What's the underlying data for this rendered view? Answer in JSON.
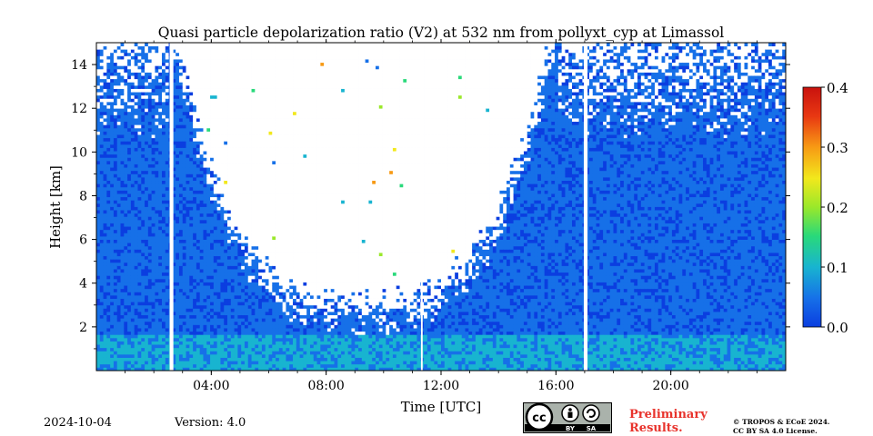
{
  "chart_data": {
    "type": "heatmap",
    "title": "Quasi particle depolarization ratio (V2) at 532 nm from pollyxt_cyp at Limassol",
    "xlabel": "Time [UTC]",
    "ylabel": "Height [km]",
    "x_range_hours": [
      0,
      24
    ],
    "ylim": [
      0,
      15
    ],
    "x_ticks": [
      {
        "value": 4,
        "label": "04:00"
      },
      {
        "value": 8,
        "label": "08:00"
      },
      {
        "value": 12,
        "label": "12:00"
      },
      {
        "value": 16,
        "label": "16:00"
      },
      {
        "value": 20,
        "label": "20:00"
      }
    ],
    "y_ticks": [
      {
        "value": 2,
        "label": "2"
      },
      {
        "value": 4,
        "label": "4"
      },
      {
        "value": 6,
        "label": "6"
      },
      {
        "value": 8,
        "label": "8"
      },
      {
        "value": 10,
        "label": "10"
      },
      {
        "value": 12,
        "label": "12"
      },
      {
        "value": 14,
        "label": "14"
      }
    ],
    "colorbar": {
      "range": [
        0.0,
        0.4
      ],
      "ticks": [
        {
          "value": 0.0,
          "label": "0.0"
        },
        {
          "value": 0.1,
          "label": "0.1"
        },
        {
          "value": 0.2,
          "label": "0.2"
        },
        {
          "value": 0.3,
          "label": "0.3"
        },
        {
          "value": 0.4,
          "label": "0.4"
        }
      ],
      "colormap": [
        "#0b3ee0",
        "#1670e8",
        "#18b4d0",
        "#29d97a",
        "#9ae82a",
        "#f2e81c",
        "#f79a14",
        "#e83712",
        "#c9120e"
      ]
    },
    "no_data_gaps_hours": [
      [
        2.55,
        2.68
      ],
      [
        11.3,
        11.36
      ],
      [
        16.97,
        17.1
      ]
    ],
    "daytime_white_region": {
      "start_hour": 2.7,
      "end_hour": 15.9,
      "lowest_base_km": 2.7,
      "top_km": 15
    },
    "background_value": 0.03,
    "boundary_layer_value": 0.08,
    "boundary_layer_top_km": 1.5
  },
  "footer": {
    "date": "2024-10-04",
    "version": "Version: 4.0",
    "preliminary_line1": "Preliminary",
    "preliminary_line2": "Results.",
    "copyright_line1": "© TROPOS & ECoE 2024.",
    "copyright_line2": "CC BY SA 4.0 License.",
    "license_badge": {
      "cc": "cc",
      "by": "BY",
      "sa": "SA",
      "icon": "creative-commons-icon"
    }
  }
}
